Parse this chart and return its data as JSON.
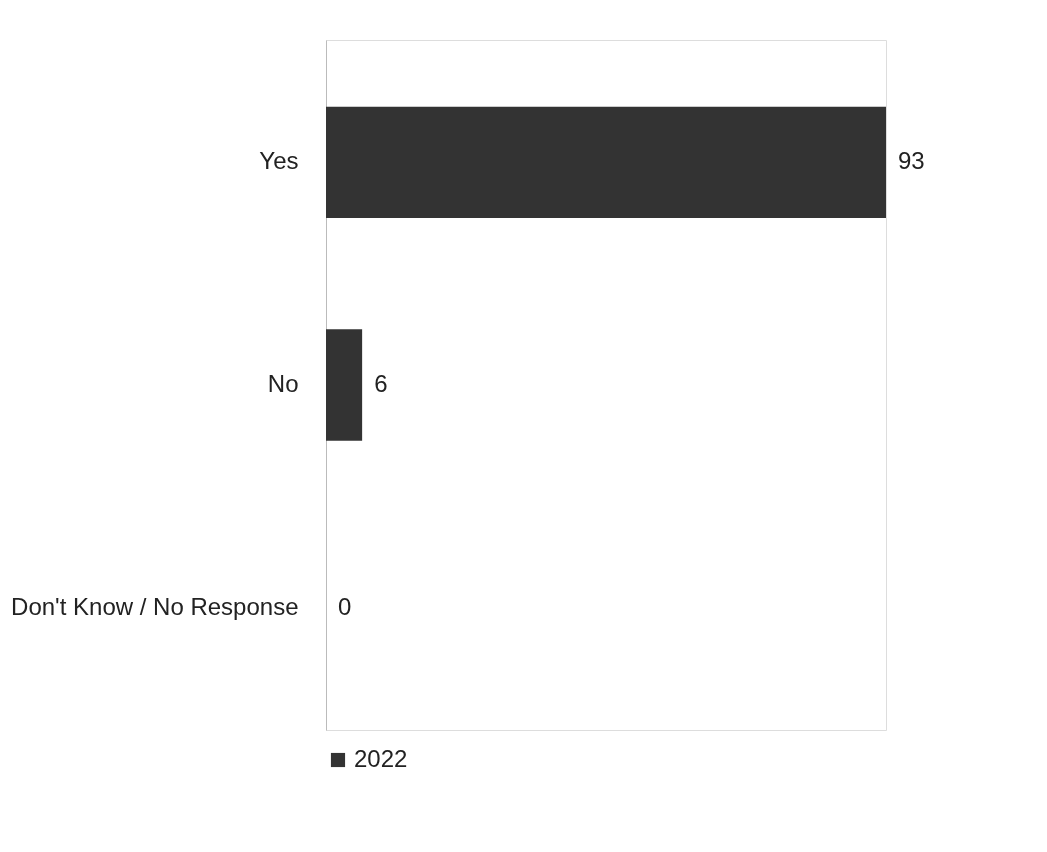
{
  "chart_data": {
    "type": "bar",
    "orientation": "horizontal",
    "categories": [
      "Yes",
      "No",
      "Don't Know / No Response"
    ],
    "series": [
      {
        "name": "2022",
        "color": "#333333",
        "values": [
          93,
          6,
          0
        ]
      }
    ],
    "data_labels": true,
    "legend": "bottom",
    "grid": false
  }
}
